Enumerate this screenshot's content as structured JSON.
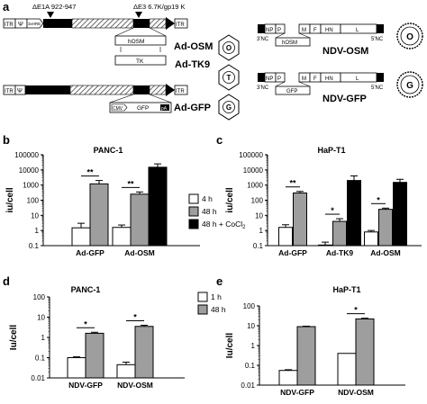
{
  "panel_labels": {
    "a": "a",
    "b": "b",
    "c": "c",
    "d": "d",
    "e": "e"
  },
  "panel_a": {
    "deletion_e1": "ΔE1A 922-947",
    "deletion_e3": "ΔE3 6.7K/gp19 K",
    "itr": "ITR",
    "psi": "Ψ",
    "hre": "3xHRE",
    "hosm": "hOSM",
    "tk": "TK",
    "cmv": "CMV",
    "gfp": "GFP",
    "pa": "pA",
    "ad_osm": "Ad-OSM",
    "ad_tk9": "Ad-TK9",
    "ad_gfp": "Ad-GFP",
    "badge_o": "O",
    "badge_t": "T",
    "badge_g": "G",
    "ndv_genes": [
      "NP",
      "P",
      "M",
      "F",
      "HN",
      "L"
    ],
    "nc3": "3'NC",
    "nc5": "5'NC",
    "ndv_osm": "NDV-OSM",
    "ndv_gfp": "NDV-GFP"
  },
  "colors": {
    "white_bar": "#ffffff",
    "grey_bar": "#9e9e9e",
    "black_bar": "#000000"
  },
  "chart_data": [
    {
      "panel": "b",
      "type": "bar",
      "title": "PANC-1",
      "ylabel": "iu/cell",
      "log_scale": true,
      "ylim": [
        0.1,
        100000
      ],
      "yticks": [
        "0.1",
        "1",
        "10",
        "100",
        "1000",
        "10000",
        "100000"
      ],
      "categories": [
        "Ad-GFP",
        "Ad-OSM"
      ],
      "series": [
        {
          "name": "4 h",
          "values": [
            1.5,
            1.6
          ],
          "errors": [
            3.0,
            2.3
          ]
        },
        {
          "name": "48 h",
          "values": [
            1200,
            250
          ],
          "errors": [
            2000,
            350
          ]
        },
        {
          "name": "48 h + CoCl",
          "values": [
            null,
            15000
          ],
          "errors": [
            null,
            25000
          ]
        }
      ],
      "significance": [
        "**",
        "**"
      ],
      "legend": [
        "4 h",
        "48 h",
        "48 h + CoCl"
      ]
    },
    {
      "panel": "c",
      "type": "bar",
      "title": "HaP-T1",
      "ylabel": "iu/cell",
      "log_scale": true,
      "ylim": [
        0.1,
        100000
      ],
      "yticks": [
        "0.1",
        "1",
        "10",
        "100",
        "1000",
        "10000",
        "100000"
      ],
      "categories": [
        "Ad-GFP",
        "Ad-TK9",
        "Ad-OSM"
      ],
      "series": [
        {
          "name": "4 h",
          "values": [
            1.6,
            0.11,
            0.8
          ],
          "errors": [
            2.4,
            0.17,
            1.0
          ]
        },
        {
          "name": "48 h",
          "values": [
            300,
            4,
            25
          ],
          "errors": [
            380,
            6,
            30
          ]
        },
        {
          "name": "48 h + CoCl",
          "values": [
            null,
            2000,
            1500
          ],
          "errors": [
            null,
            4000,
            2400
          ]
        }
      ],
      "significance": [
        "**",
        "*",
        "*"
      ]
    },
    {
      "panel": "d",
      "type": "bar",
      "title": "PANC-1",
      "ylabel": "Iu/cell",
      "log_scale": true,
      "ylim": [
        0.01,
        100
      ],
      "yticks": [
        "0.01",
        "0.1",
        "1",
        "10",
        "100"
      ],
      "categories": [
        "NDV-GFP",
        "NDV-OSM"
      ],
      "series": [
        {
          "name": "1 h",
          "values": [
            0.1,
            0.045
          ],
          "errors": [
            0.11,
            0.06
          ]
        },
        {
          "name": "48 h",
          "values": [
            1.6,
            3.5
          ],
          "errors": [
            1.8,
            4.0
          ]
        }
      ],
      "significance": [
        "*",
        "*"
      ],
      "legend": [
        "1 h",
        "48 h"
      ]
    },
    {
      "panel": "e",
      "type": "bar",
      "title": "HaP-T1",
      "ylabel": "Iu/cell",
      "log_scale": true,
      "ylim": [
        0.01,
        100
      ],
      "yticks": [
        "0.01",
        "0.1",
        "1",
        "10",
        "100"
      ],
      "categories": [
        "NDV-GFP",
        "NDV-OSM"
      ],
      "series": [
        {
          "name": "1 h",
          "values": [
            0.055,
            0.4
          ],
          "errors": [
            0.06,
            null
          ]
        },
        {
          "name": "48 h",
          "values": [
            9,
            22
          ],
          "errors": [
            9.5,
            24
          ]
        }
      ],
      "significance": [
        null,
        "*"
      ]
    }
  ]
}
